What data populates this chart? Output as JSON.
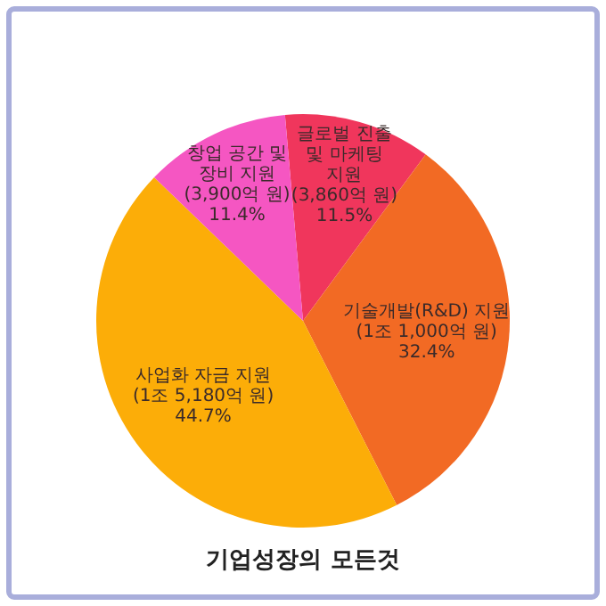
{
  "chart_data": {
    "type": "pie",
    "categories": [
      "글로벌 진출 및 마케팅 지원 (3,860억 원)",
      "기술개발(R&D) 지원 (1조 1,000억 원)",
      "사업화 자금 지원 (1조 5,180억 원)",
      "창업 공간 및 장비 지원 (3,900억 원)"
    ],
    "values": [
      11.5,
      32.4,
      44.7,
      11.4
    ],
    "value_labels": [
      "11.5%",
      "32.4%",
      "44.7%",
      "11.4%"
    ],
    "colors": [
      "#f0365c",
      "#f26a24",
      "#fcad08",
      "#f556c2"
    ],
    "annotations": [
      "기업성장의 모든것"
    ]
  }
}
